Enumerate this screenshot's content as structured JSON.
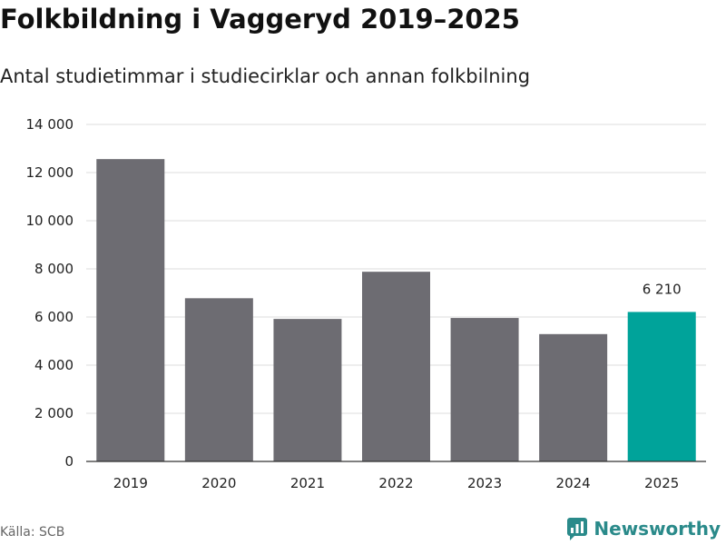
{
  "title": "Folkbildning i Vaggeryd 2019–2025",
  "subtitle": "Antal studietimmar i studiecirklar och annan folkbilning",
  "source": "Källa: SCB",
  "brand": {
    "name": "Newsworthy",
    "icon": "newsworthy-logo-icon",
    "color": "#2a8a8a"
  },
  "colors": {
    "bar": "#6d6c72",
    "highlight": "#00a39a",
    "grid": "#dddddd"
  },
  "chart_data": {
    "type": "bar",
    "title": "Folkbildning i Vaggeryd 2019–2025",
    "subtitle": "Antal studietimmar i studiecirklar och annan folkbilning",
    "xlabel": "",
    "ylabel": "",
    "categories": [
      "2019",
      "2020",
      "2021",
      "2022",
      "2023",
      "2024",
      "2025"
    ],
    "values": [
      12560,
      6780,
      5920,
      7880,
      5960,
      5290,
      6210
    ],
    "highlight_index": 6,
    "data_labels": [
      {
        "category": "2025",
        "text": "6 210"
      }
    ],
    "ylim": [
      0,
      14000
    ],
    "yticks": [
      0,
      2000,
      4000,
      6000,
      8000,
      10000,
      12000,
      14000
    ],
    "ytick_labels": [
      "0",
      "2 000",
      "4 000",
      "6 000",
      "8 000",
      "10 000",
      "12 000",
      "14 000"
    ],
    "grid": true,
    "legend": "none"
  }
}
